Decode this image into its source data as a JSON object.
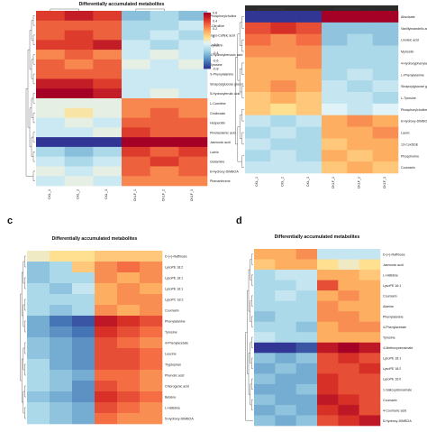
{
  "figure": {
    "panel_letters": [
      "",
      "",
      "c",
      "d"
    ]
  },
  "chart_data": [
    {
      "type": "heatmap",
      "panel": "a",
      "title": "Differentially accumulated metabolites",
      "columns": [
        "CKL_1",
        "CKL_2",
        "CKL_3",
        "CKLF_1",
        "CKLF_2",
        "CKLF_3"
      ],
      "rows": [
        "Phosphorylcholine",
        "l-Citrulline",
        "trans-Caffeic acid",
        "Myricitrin",
        "4-Hydroxybenzoic acid",
        "Tyrosine",
        "S-Phenylalanine",
        "Sinapoylglucose glucol",
        "5-Hydroxyferulic acid",
        "L-Carnitine",
        "Cholinoate",
        "Hesperidin",
        "Pinellaclamic acid",
        "Jasmonic acid",
        "Lutein",
        "Glutamine",
        "6-Hydroxy-DIMBOA",
        "Phenanthrene"
      ],
      "values": [
        [
          0.4,
          0.5,
          0.4,
          -0.5,
          -0.4,
          -0.5
        ],
        [
          0.3,
          0.3,
          0.3,
          -0.4,
          -0.4,
          -0.3
        ],
        [
          0.3,
          0.4,
          0.3,
          -0.4,
          -0.3,
          -0.4
        ],
        [
          0.4,
          0.4,
          0.5,
          -0.3,
          -0.4,
          -0.3
        ],
        [
          0.2,
          0.3,
          0.2,
          -0.3,
          -0.2,
          -0.3
        ],
        [
          0.3,
          0.2,
          0.3,
          -0.2,
          -0.3,
          -0.2
        ],
        [
          0.3,
          0.3,
          0.3,
          -0.3,
          -0.3,
          -0.3
        ],
        [
          0.5,
          0.5,
          0.4,
          -0.3,
          -0.3,
          -0.3
        ],
        [
          0.6,
          0.6,
          0.5,
          -0.3,
          -0.2,
          -0.3
        ],
        [
          -0.2,
          -0.2,
          -0.2,
          0.2,
          0.2,
          0.2
        ],
        [
          -0.2,
          -0.1,
          -0.2,
          0.2,
          0.3,
          0.2
        ],
        [
          -0.3,
          -0.2,
          -0.3,
          0.3,
          0.3,
          0.3
        ],
        [
          -0.3,
          -0.3,
          -0.2,
          0.4,
          0.3,
          0.3
        ],
        [
          -0.9,
          -0.9,
          -0.9,
          0.6,
          0.6,
          0.6
        ],
        [
          -0.4,
          -0.5,
          -0.4,
          0.4,
          0.3,
          0.4
        ],
        [
          -0.3,
          -0.4,
          -0.3,
          0.3,
          0.4,
          0.3
        ],
        [
          -0.2,
          -0.3,
          -0.2,
          0.3,
          0.2,
          0.3
        ],
        [
          -0.3,
          -0.2,
          -0.3,
          0.2,
          0.2,
          0.2
        ]
      ],
      "legend_ticks": [
        "0.6",
        "0.4",
        "0.2",
        "0",
        "-0.2",
        "-0.4",
        "-0.6",
        "-0.8"
      ],
      "vmin": -0.9,
      "vmax": 0.6
    },
    {
      "type": "heatmap",
      "panel": "b",
      "title": "",
      "columns": [
        "CKL_1",
        "CKL_2",
        "CKL_3",
        "CKLF_1",
        "CKLF_2",
        "CKLF_3"
      ],
      "rows": [
        "Abscisate",
        "Vanillylmandelic acid",
        "Linoleic acid",
        "Myricetin",
        "4-Hydroxyphenylacetate",
        "L-Phenylalanine",
        "Sinapoylglucose glucol",
        "L-Tyrosine",
        "Phosphorylcholine",
        "6-Hydroxy-DIMBOA",
        "Lauric",
        "13-CoxDDE",
        "Phosphorine",
        "Coumarin"
      ],
      "values": [
        [
          -0.9,
          -0.9,
          -0.9,
          0.9,
          0.9,
          0.9
        ],
        [
          0.6,
          0.7,
          0.6,
          -0.4,
          -0.4,
          -0.4
        ],
        [
          0.5,
          0.4,
          0.5,
          -0.4,
          -0.3,
          -0.4
        ],
        [
          0.4,
          0.4,
          0.4,
          -0.3,
          -0.3,
          -0.3
        ],
        [
          0.3,
          0.3,
          0.4,
          -0.3,
          -0.3,
          -0.3
        ],
        [
          0.3,
          0.3,
          0.3,
          -0.3,
          -0.2,
          -0.3
        ],
        [
          0.3,
          0.4,
          0.3,
          -0.2,
          -0.3,
          -0.2
        ],
        [
          0.2,
          0.3,
          0.2,
          -0.2,
          -0.2,
          -0.3
        ],
        [
          0.2,
          0.1,
          0.2,
          -0.1,
          -0.2,
          -0.1
        ],
        [
          -0.2,
          -0.3,
          -0.2,
          0.3,
          0.4,
          0.3
        ],
        [
          -0.3,
          -0.2,
          -0.3,
          0.3,
          0.3,
          0.4
        ],
        [
          -0.2,
          -0.3,
          -0.3,
          0.2,
          0.3,
          0.3
        ],
        [
          -0.3,
          -0.2,
          -0.3,
          0.3,
          0.2,
          0.3
        ],
        [
          -0.2,
          -0.2,
          -0.2,
          0.2,
          0.3,
          0.2
        ]
      ],
      "vmin": -0.9,
      "vmax": 0.9
    },
    {
      "type": "heatmap",
      "panel": "c",
      "title": "Differentially accumulated metabolites",
      "columns": [],
      "rows": [
        "D-(+)-Raffinose",
        "LysoPE 18:2",
        "LysoPE 18:1",
        "LysoPE 16:1",
        "LysoPC 18:2",
        "Coumarin",
        "Phenylalanine",
        "Tyrosine",
        "4-Phenylacetate",
        "Leucine",
        "Tryptophan",
        "Phenolic acid",
        "Chlorogenic acid",
        "Betaine",
        "L-Histidine",
        "5-Hydroxy-DIMBOA"
      ],
      "values": [
        [
          0.0,
          0.1,
          0.1,
          0.2,
          0.2,
          0.2
        ],
        [
          -0.4,
          -0.3,
          0.2,
          0.4,
          0.5,
          0.4
        ],
        [
          -0.4,
          -0.3,
          -0.3,
          0.4,
          0.3,
          0.4
        ],
        [
          -0.3,
          -0.4,
          -0.2,
          0.3,
          0.4,
          0.3
        ],
        [
          -0.3,
          -0.3,
          -0.3,
          0.3,
          0.4,
          0.4
        ],
        [
          -0.3,
          -0.4,
          -0.3,
          0.4,
          0.3,
          0.4
        ],
        [
          -0.5,
          -0.7,
          -0.8,
          0.8,
          0.7,
          0.6
        ],
        [
          -0.5,
          -0.6,
          -0.7,
          0.7,
          0.6,
          0.5
        ],
        [
          -0.4,
          -0.5,
          -0.6,
          0.6,
          0.5,
          0.4
        ],
        [
          -0.4,
          -0.5,
          -0.6,
          0.6,
          0.6,
          0.5
        ],
        [
          -0.3,
          -0.5,
          -0.6,
          0.6,
          0.6,
          0.5
        ],
        [
          -0.3,
          -0.4,
          -0.5,
          0.5,
          0.5,
          0.4
        ],
        [
          -0.3,
          -0.4,
          -0.6,
          0.6,
          0.5,
          0.4
        ],
        [
          -0.4,
          -0.5,
          -0.6,
          0.7,
          0.6,
          0.5
        ],
        [
          -0.3,
          -0.4,
          -0.5,
          0.6,
          0.5,
          0.4
        ],
        [
          -0.3,
          -0.4,
          -0.5,
          0.5,
          0.4,
          0.4
        ]
      ],
      "vmin": -0.9,
      "vmax": 0.9
    },
    {
      "type": "heatmap",
      "panel": "d",
      "title": "Differentially accumulated metabolites",
      "columns": [],
      "rows": [
        "D-(+)-Raffinose",
        "Jasmonic acid",
        "L-Histidine",
        "LysoPE 16:1",
        "Coumarin",
        "Alanine",
        "Phenylalanine",
        "4-Phenylacetate",
        "Tyrosine",
        "4-Methoxycinnamate",
        "LysoPE 18:1",
        "LysoPE 18:2",
        "LysoPE 16:0",
        "1-Salicoylcinnamate",
        "Coumarin",
        "4-Coumaric acid",
        "5-Hydroxy-DIMBOA"
      ],
      "values": [
        [
          0.3,
          0.3,
          0.4,
          -0.2,
          -0.2,
          -0.2
        ],
        [
          0.2,
          0.3,
          0.3,
          0.1,
          0.0,
          0.1
        ],
        [
          -0.3,
          -0.2,
          -0.2,
          0.3,
          0.3,
          0.2
        ],
        [
          -0.3,
          -0.3,
          -0.2,
          0.6,
          0.3,
          0.3
        ],
        [
          -0.3,
          -0.2,
          -0.3,
          0.3,
          0.4,
          0.3
        ],
        [
          -0.3,
          -0.3,
          -0.3,
          0.4,
          0.3,
          0.3
        ],
        [
          -0.4,
          -0.3,
          -0.3,
          0.4,
          0.4,
          0.3
        ],
        [
          -0.3,
          -0.3,
          -0.4,
          0.3,
          0.4,
          0.4
        ],
        [
          -0.2,
          -0.3,
          -0.3,
          0.3,
          0.3,
          0.3
        ],
        [
          -0.9,
          -0.9,
          -0.8,
          0.8,
          0.9,
          0.8
        ],
        [
          -0.4,
          -0.5,
          -0.4,
          0.6,
          0.7,
          0.6
        ],
        [
          -0.5,
          -0.4,
          -0.5,
          0.6,
          0.6,
          0.7
        ],
        [
          -0.4,
          -0.5,
          -0.5,
          0.7,
          0.6,
          0.6
        ],
        [
          -0.5,
          -0.5,
          -0.4,
          0.7,
          0.6,
          0.6
        ],
        [
          -0.4,
          -0.5,
          -0.5,
          0.8,
          0.7,
          0.6
        ],
        [
          -0.5,
          -0.4,
          -0.5,
          0.7,
          0.8,
          0.6
        ],
        [
          -0.4,
          -0.5,
          -0.4,
          0.6,
          0.7,
          0.8
        ]
      ],
      "vmin": -0.9,
      "vmax": 0.9
    }
  ]
}
